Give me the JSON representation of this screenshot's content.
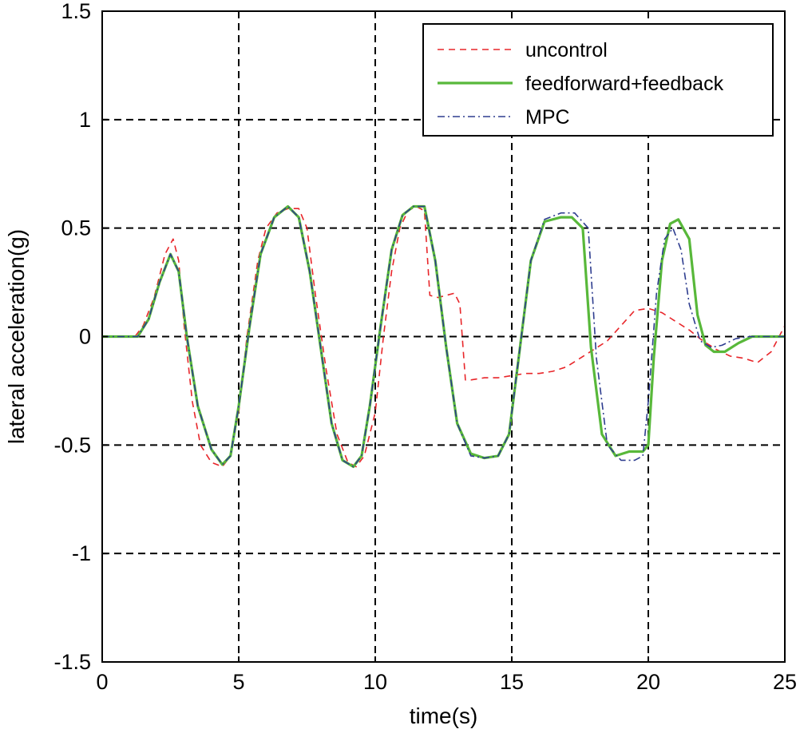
{
  "chart_data": {
    "type": "line",
    "title": "",
    "xlabel": "time(s)",
    "ylabel": "lateral acceleration(g)",
    "xlim": [
      0,
      25
    ],
    "ylim": [
      -1.5,
      1.5
    ],
    "xticks": [
      0,
      5,
      10,
      15,
      20,
      25
    ],
    "yticks": [
      -1.5,
      -1,
      -0.5,
      0,
      0.5,
      1,
      1.5
    ],
    "xtick_labels": [
      "0",
      "5",
      "10",
      "15",
      "20",
      "25"
    ],
    "ytick_labels": [
      "-1.5",
      "-1",
      "-0.5",
      "0",
      "0.5",
      "1",
      "1.5"
    ],
    "grid": true,
    "grid_style": "dashed",
    "legend_position": "top-right",
    "series": [
      {
        "name": "uncontrol",
        "color": "#e8262a",
        "style": "dashed",
        "x": [
          0,
          1.2,
          1.5,
          1.9,
          2.3,
          2.6,
          2.8,
          3.0,
          3.3,
          3.6,
          4.0,
          4.4,
          4.7,
          5.0,
          5.3,
          5.7,
          6.0,
          6.4,
          6.8,
          7.2,
          7.5,
          7.8,
          8.2,
          8.6,
          9.0,
          9.3,
          9.6,
          10.0,
          10.3,
          10.6,
          10.9,
          11.2,
          11.5,
          11.8,
          12.0,
          12.3,
          12.6,
          12.9,
          13.1,
          13.3,
          13.5,
          14.0,
          14.5,
          15.0,
          15.5,
          16.0,
          16.5,
          17.0,
          17.5,
          18.0,
          18.5,
          19.0,
          19.5,
          20.0,
          20.5,
          21.0,
          21.5,
          22.0,
          22.5,
          23.0,
          23.5,
          24.0,
          24.5,
          25.0
        ],
        "y": [
          0,
          0,
          0.05,
          0.18,
          0.38,
          0.45,
          0.35,
          0.05,
          -0.3,
          -0.5,
          -0.58,
          -0.6,
          -0.55,
          -0.35,
          0.0,
          0.35,
          0.5,
          0.57,
          0.59,
          0.59,
          0.5,
          0.2,
          -0.15,
          -0.45,
          -0.58,
          -0.6,
          -0.55,
          -0.35,
          0.0,
          0.3,
          0.5,
          0.58,
          0.6,
          0.58,
          0.19,
          0.18,
          0.19,
          0.2,
          0.15,
          -0.2,
          -0.2,
          -0.19,
          -0.19,
          -0.18,
          -0.17,
          -0.17,
          -0.16,
          -0.14,
          -0.1,
          -0.06,
          -0.02,
          0.05,
          0.12,
          0.13,
          0.11,
          0.07,
          0.03,
          -0.02,
          -0.06,
          -0.09,
          -0.1,
          -0.12,
          -0.07,
          0.05
        ]
      },
      {
        "name": "feedforward+feedback",
        "color": "#58b83a",
        "style": "solid",
        "x": [
          0,
          1.3,
          1.7,
          2.1,
          2.5,
          2.8,
          3.1,
          3.5,
          4.0,
          4.4,
          4.7,
          5.0,
          5.4,
          5.8,
          6.3,
          6.8,
          7.2,
          7.6,
          8.0,
          8.4,
          8.8,
          9.2,
          9.5,
          9.8,
          10.2,
          10.6,
          11.0,
          11.4,
          11.8,
          12.2,
          12.6,
          13.0,
          13.5,
          14.0,
          14.5,
          14.9,
          15.3,
          15.7,
          16.2,
          16.8,
          17.2,
          17.6,
          17.9,
          18.3,
          18.8,
          19.3,
          19.8,
          20.0,
          20.2,
          20.5,
          20.8,
          21.1,
          21.5,
          21.8,
          22.1,
          22.4,
          22.8,
          23.3,
          23.8,
          24.3,
          24.8,
          25.0
        ],
        "y": [
          0,
          0,
          0.08,
          0.25,
          0.38,
          0.3,
          0.0,
          -0.32,
          -0.52,
          -0.59,
          -0.55,
          -0.32,
          0.05,
          0.38,
          0.55,
          0.6,
          0.55,
          0.3,
          -0.05,
          -0.4,
          -0.57,
          -0.6,
          -0.55,
          -0.32,
          0.05,
          0.4,
          0.56,
          0.6,
          0.6,
          0.35,
          -0.05,
          -0.4,
          -0.54,
          -0.56,
          -0.55,
          -0.45,
          -0.05,
          0.35,
          0.53,
          0.55,
          0.55,
          0.5,
          -0.05,
          -0.45,
          -0.55,
          -0.53,
          -0.53,
          -0.5,
          -0.1,
          0.35,
          0.52,
          0.54,
          0.45,
          0.1,
          -0.04,
          -0.07,
          -0.07,
          -0.03,
          0.0,
          0.0,
          0.0,
          0.0
        ]
      },
      {
        "name": "MPC",
        "color": "#2e3d8f",
        "style": "dashdot",
        "x": [
          0,
          1.3,
          1.7,
          2.1,
          2.5,
          2.8,
          3.1,
          3.5,
          4.0,
          4.4,
          4.7,
          5.0,
          5.4,
          5.8,
          6.3,
          6.8,
          7.2,
          7.6,
          8.0,
          8.4,
          8.8,
          9.2,
          9.5,
          9.8,
          10.2,
          10.6,
          11.0,
          11.4,
          11.8,
          12.2,
          12.6,
          13.0,
          13.5,
          14.0,
          14.5,
          14.9,
          15.3,
          15.7,
          16.2,
          16.8,
          17.3,
          17.8,
          18.1,
          18.5,
          19.0,
          19.5,
          19.8,
          20.0,
          20.3,
          20.6,
          20.9,
          21.2,
          21.5,
          21.9,
          22.3,
          22.7,
          23.2,
          23.7,
          24.2,
          24.7,
          25.0
        ],
        "y": [
          0,
          0,
          0.08,
          0.25,
          0.38,
          0.3,
          0.0,
          -0.32,
          -0.52,
          -0.59,
          -0.55,
          -0.32,
          0.05,
          0.38,
          0.55,
          0.6,
          0.55,
          0.3,
          -0.05,
          -0.4,
          -0.57,
          -0.6,
          -0.55,
          -0.32,
          0.05,
          0.4,
          0.56,
          0.6,
          0.6,
          0.35,
          -0.05,
          -0.4,
          -0.55,
          -0.56,
          -0.55,
          -0.45,
          -0.05,
          0.35,
          0.54,
          0.57,
          0.57,
          0.5,
          -0.1,
          -0.5,
          -0.57,
          -0.57,
          -0.55,
          -0.3,
          0.2,
          0.45,
          0.5,
          0.4,
          0.15,
          -0.02,
          -0.05,
          -0.04,
          -0.01,
          0.0,
          0.0,
          0.0,
          0.0
        ]
      }
    ]
  }
}
